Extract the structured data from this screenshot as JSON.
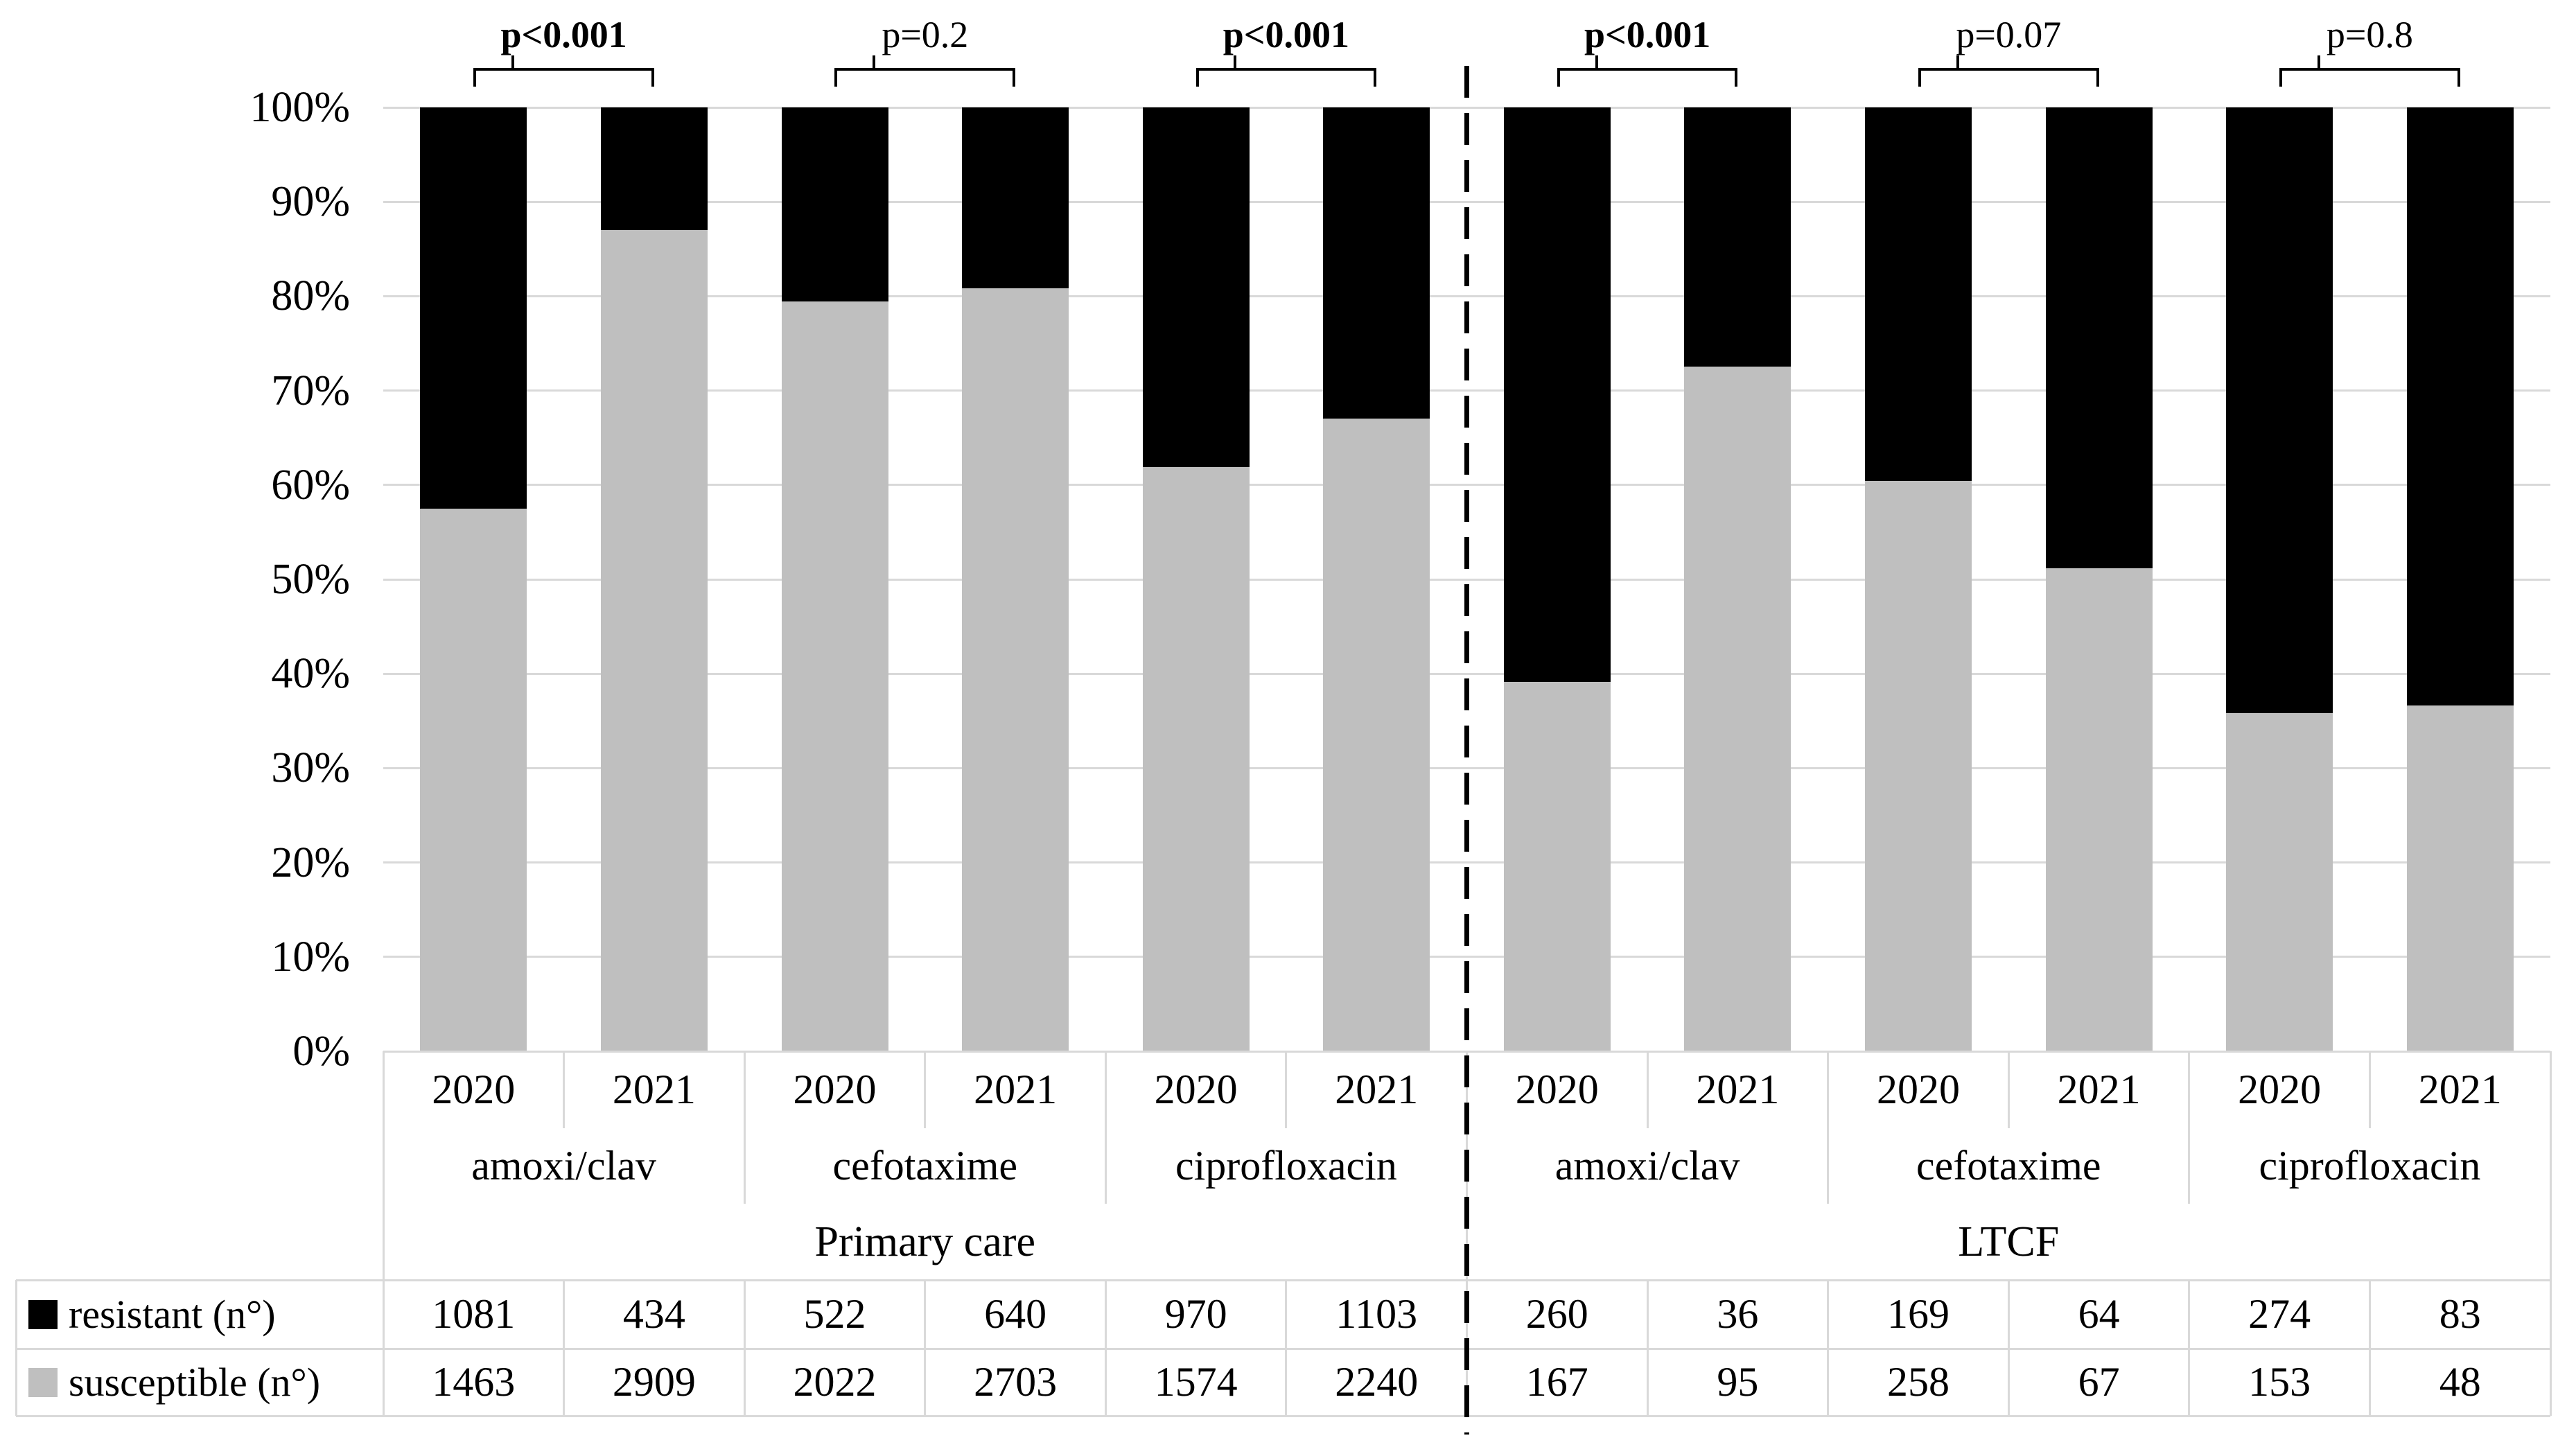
{
  "chart_data": {
    "type": "bar",
    "subtype": "100%-stacked-columns",
    "title": "",
    "xlabel": "",
    "ylabel": "",
    "ylim": [
      0,
      100
    ],
    "grid": true,
    "legend_position": "table-left-bottom",
    "y_ticks": [
      "0%",
      "10%",
      "20%",
      "30%",
      "40%",
      "50%",
      "60%",
      "70%",
      "80%",
      "90%",
      "100%"
    ],
    "colors": {
      "resistant": "#000000",
      "susceptible": "#bfbfbf",
      "gridline": "#d9d9d9",
      "table_border": "#d9d9d9",
      "divider": "#000000",
      "text": "#000000"
    },
    "legend": [
      {
        "key": "resistant",
        "label": "resistant (n°)",
        "color": "#000000"
      },
      {
        "key": "susceptible",
        "label": "susceptible (n°)",
        "color": "#bfbfbf"
      }
    ],
    "groups": [
      {
        "label": "Primary care",
        "drugs": [
          {
            "label": "amoxi/clav",
            "p_value": "p<0.001",
            "p_bold": true,
            "bars": [
              {
                "year": "2020",
                "resistant": 1081,
                "susceptible": 1463
              },
              {
                "year": "2021",
                "resistant": 434,
                "susceptible": 2909
              }
            ]
          },
          {
            "label": "cefotaxime",
            "p_value": "p=0.2",
            "p_bold": false,
            "bars": [
              {
                "year": "2020",
                "resistant": 522,
                "susceptible": 2022
              },
              {
                "year": "2021",
                "resistant": 640,
                "susceptible": 2703
              }
            ]
          },
          {
            "label": "ciprofloxacin",
            "p_value": "p<0.001",
            "p_bold": true,
            "bars": [
              {
                "year": "2020",
                "resistant": 970,
                "susceptible": 1574
              },
              {
                "year": "2021",
                "resistant": 1103,
                "susceptible": 2240
              }
            ]
          }
        ]
      },
      {
        "label": "LTCF",
        "drugs": [
          {
            "label": "amoxi/clav",
            "p_value": "p<0.001",
            "p_bold": true,
            "bars": [
              {
                "year": "2020",
                "resistant": 260,
                "susceptible": 167
              },
              {
                "year": "2021",
                "resistant": 36,
                "susceptible": 95
              }
            ]
          },
          {
            "label": "cefotaxime",
            "p_value": "p=0.07",
            "p_bold": false,
            "bars": [
              {
                "year": "2020",
                "resistant": 169,
                "susceptible": 258
              },
              {
                "year": "2021",
                "resistant": 64,
                "susceptible": 67
              }
            ]
          },
          {
            "label": "ciprofloxacin",
            "p_value": "p=0.8",
            "p_bold": false,
            "bars": [
              {
                "year": "2020",
                "resistant": 274,
                "susceptible": 153
              },
              {
                "year": "2021",
                "resistant": 83,
                "susceptible": 48
              }
            ]
          }
        ]
      }
    ]
  }
}
